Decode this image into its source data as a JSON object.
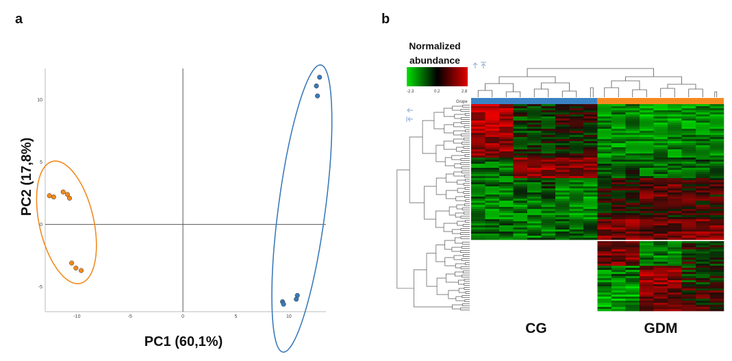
{
  "panels": {
    "a_label": "a",
    "b_label": "b"
  },
  "chart_data": [
    {
      "type": "scatter",
      "panel": "a",
      "xlabel": "PC1 (60,1%)",
      "ylabel": "PC2 (17,8%)",
      "xlim": [
        -13,
        13.5
      ],
      "ylim": [
        -7,
        12.5
      ],
      "x_ticks": [
        -10,
        -5,
        0,
        5,
        10
      ],
      "x_tick_labels": [
        "-10",
        "-5",
        "0",
        "5",
        "10"
      ],
      "y_ticks": [
        10,
        5,
        0,
        -5
      ],
      "y_tick_labels": [
        "10",
        "5",
        "0",
        "-5"
      ],
      "series": [
        {
          "color": "#f08a1f",
          "ellipse_color": "#f08a1f",
          "points": [
            {
              "x": -12.6,
              "y": 2.3
            },
            {
              "x": -12.2,
              "y": 2.2
            },
            {
              "x": -11.3,
              "y": 2.6
            },
            {
              "x": -10.9,
              "y": 2.4
            },
            {
              "x": -10.7,
              "y": 2.1
            },
            {
              "x": -10.5,
              "y": -3.1
            },
            {
              "x": -10.1,
              "y": -3.5
            },
            {
              "x": -9.6,
              "y": -3.7
            }
          ]
        },
        {
          "color": "#3a7ab8",
          "ellipse_color": "#3a7ab8",
          "points": [
            {
              "x": 12.9,
              "y": 11.8
            },
            {
              "x": 12.6,
              "y": 11.1
            },
            {
              "x": 12.7,
              "y": 10.3
            },
            {
              "x": 9.4,
              "y": -6.2
            },
            {
              "x": 9.5,
              "y": -6.4
            },
            {
              "x": 10.8,
              "y": -5.7
            },
            {
              "x": 10.7,
              "y": -6.0
            }
          ]
        }
      ]
    },
    {
      "type": "heatmap",
      "panel": "b",
      "legend_title_line1": "Normalized",
      "legend_title_line2": "abundance",
      "scale_min_label": "-2.3",
      "scale_mid_label": "0.2",
      "scale_max_label": "2.8",
      "colorscale": [
        "#00e000",
        "#000000",
        "#e00000"
      ],
      "column_annotation_label": "Grupe",
      "groups": [
        {
          "name": "CG",
          "color": "#3b82c4"
        },
        {
          "name": "GDM",
          "color": "#f5891f"
        }
      ]
    }
  ]
}
